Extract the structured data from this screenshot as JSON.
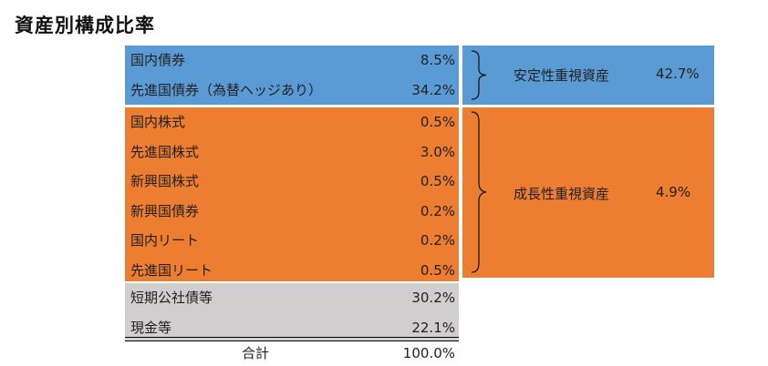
{
  "title": "資産別構成比率",
  "chart_data": {
    "type": "table",
    "groups": [
      {
        "name": "安定性重視資産",
        "total": "42.7%",
        "color": "#5b9bd5",
        "rows": [
          {
            "label": "国内債券",
            "value": "8.5%"
          },
          {
            "label": "先進国債券（為替ヘッジあり）",
            "value": "34.2%"
          }
        ]
      },
      {
        "name": "成長性重視資産",
        "total": "4.9%",
        "color": "#ed7d31",
        "rows": [
          {
            "label": "国内株式",
            "value": "0.5%"
          },
          {
            "label": "先進国株式",
            "value": "3.0%"
          },
          {
            "label": "新興国株式",
            "value": "0.5%"
          },
          {
            "label": "新興国債券",
            "value": "0.2%"
          },
          {
            "label": "国内リート",
            "value": "0.2%"
          },
          {
            "label": "先進国リート",
            "value": "0.5%"
          }
        ]
      },
      {
        "name": "",
        "total": "",
        "color": "#d0cece",
        "rows": [
          {
            "label": "短期公社債等",
            "value": "30.2%"
          },
          {
            "label": "現金等",
            "value": "22.1%"
          }
        ]
      }
    ],
    "total": {
      "label": "合計",
      "value": "100.0%"
    }
  }
}
